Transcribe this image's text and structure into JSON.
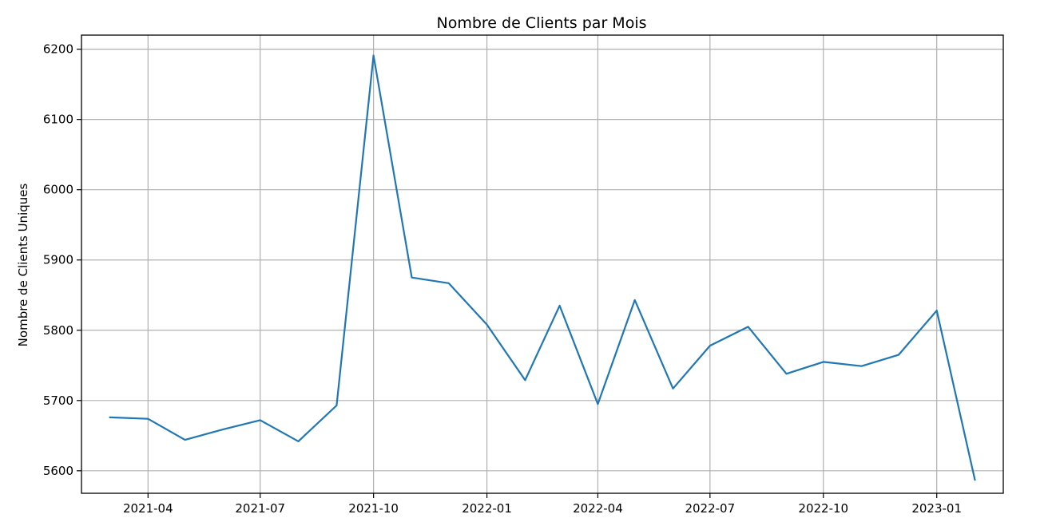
{
  "chart_data": {
    "type": "line",
    "title": "Nombre de Clients par Mois",
    "xlabel": "",
    "ylabel": "Nombre de Clients Uniques",
    "grid": true,
    "x": [
      "2021-03",
      "2021-04",
      "2021-05",
      "2021-06",
      "2021-07",
      "2021-08",
      "2021-09",
      "2021-10",
      "2021-11",
      "2021-12",
      "2022-01",
      "2022-02",
      "2022-03",
      "2022-04",
      "2022-05",
      "2022-06",
      "2022-07",
      "2022-08",
      "2022-09",
      "2022-10",
      "2022-11",
      "2022-12",
      "2023-01",
      "2023-02"
    ],
    "series": [
      {
        "values": [
          5676,
          5674,
          5644,
          5659,
          5672,
          5642,
          5693,
          6191,
          5875,
          5867,
          5808,
          5729,
          5835,
          5695,
          5843,
          5717,
          5778,
          5805,
          5738,
          5755,
          5749,
          5765,
          5828,
          5587
        ],
        "color": "#1f77b4"
      }
    ],
    "x_ticks": [
      "2021-04",
      "2021-07",
      "2021-10",
      "2022-01",
      "2022-04",
      "2022-07",
      "2022-10",
      "2023-01"
    ],
    "y_ticks": [
      5600,
      5700,
      5800,
      5900,
      6000,
      6100,
      6200
    ],
    "ylim": [
      5568,
      6220
    ],
    "xlim": [
      "2021-02-06",
      "2023-02-24"
    ]
  }
}
